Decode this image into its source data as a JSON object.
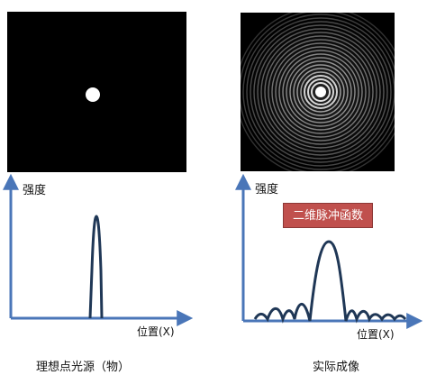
{
  "left_panel": {
    "y_label": "强度",
    "x_label": "位置(X)",
    "caption": "理想点光源（物）"
  },
  "right_panel": {
    "y_label": "强度",
    "x_label": "位置(X)",
    "tag": "二维脉冲函数",
    "caption": "实际成像"
  },
  "colors": {
    "axis": "#4a76b8",
    "curve": "#1f3756",
    "tag_bg": "#c0504d"
  }
}
